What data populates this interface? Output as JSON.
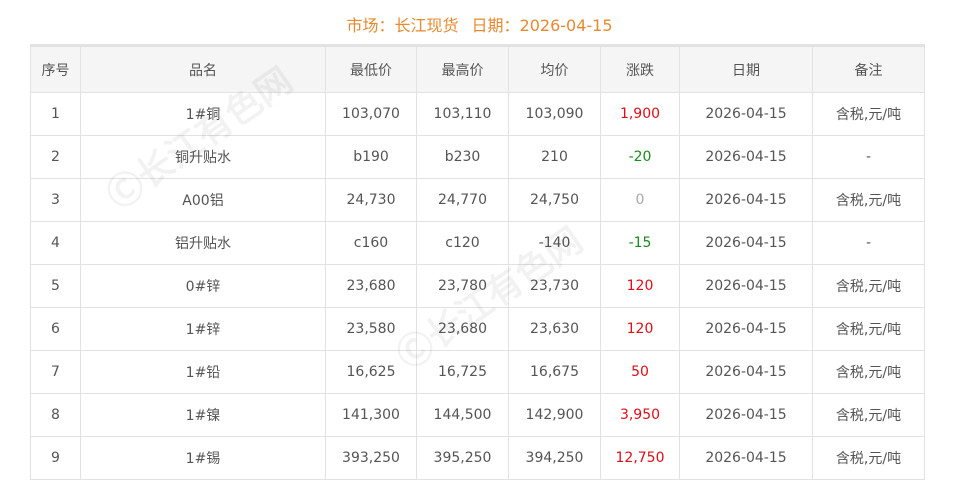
{
  "title": {
    "market_label": "市场：长江现货",
    "date_label": "日期：2026-04-15"
  },
  "watermark": "长江有色网",
  "colors": {
    "title": "#e8892f",
    "up": "#e00d16",
    "down": "#1c8a1c",
    "flat": "#aaaaaa"
  },
  "headers": [
    "序号",
    "品名",
    "最低价",
    "最高价",
    "均价",
    "涨跌",
    "日期",
    "备注"
  ],
  "rows": [
    [
      "1",
      "1#铜",
      "103,070",
      "103,110",
      "103,090",
      "1,900",
      "2026-04-15",
      "含税,元/吨",
      "up"
    ],
    [
      "2",
      "铜升贴水",
      "b190",
      "b230",
      "210",
      "-20",
      "2026-04-15",
      "-",
      "down"
    ],
    [
      "3",
      "A00铝",
      "24,730",
      "24,770",
      "24,750",
      "0",
      "2026-04-15",
      "含税,元/吨",
      "flat"
    ],
    [
      "4",
      "铝升贴水",
      "c160",
      "c120",
      "-140",
      "-15",
      "2026-04-15",
      "-",
      "down"
    ],
    [
      "5",
      "0#锌",
      "23,680",
      "23,780",
      "23,730",
      "120",
      "2026-04-15",
      "含税,元/吨",
      "up"
    ],
    [
      "6",
      "1#锌",
      "23,580",
      "23,680",
      "23,630",
      "120",
      "2026-04-15",
      "含税,元/吨",
      "up"
    ],
    [
      "7",
      "1#铅",
      "16,625",
      "16,725",
      "16,675",
      "50",
      "2026-04-15",
      "含税,元/吨",
      "up"
    ],
    [
      "8",
      "1#镍",
      "141,300",
      "144,500",
      "142,900",
      "3,950",
      "2026-04-15",
      "含税,元/吨",
      "up"
    ],
    [
      "9",
      "1#锡",
      "393,250",
      "395,250",
      "394,250",
      "12,750",
      "2026-04-15",
      "含税,元/吨",
      "up"
    ]
  ]
}
